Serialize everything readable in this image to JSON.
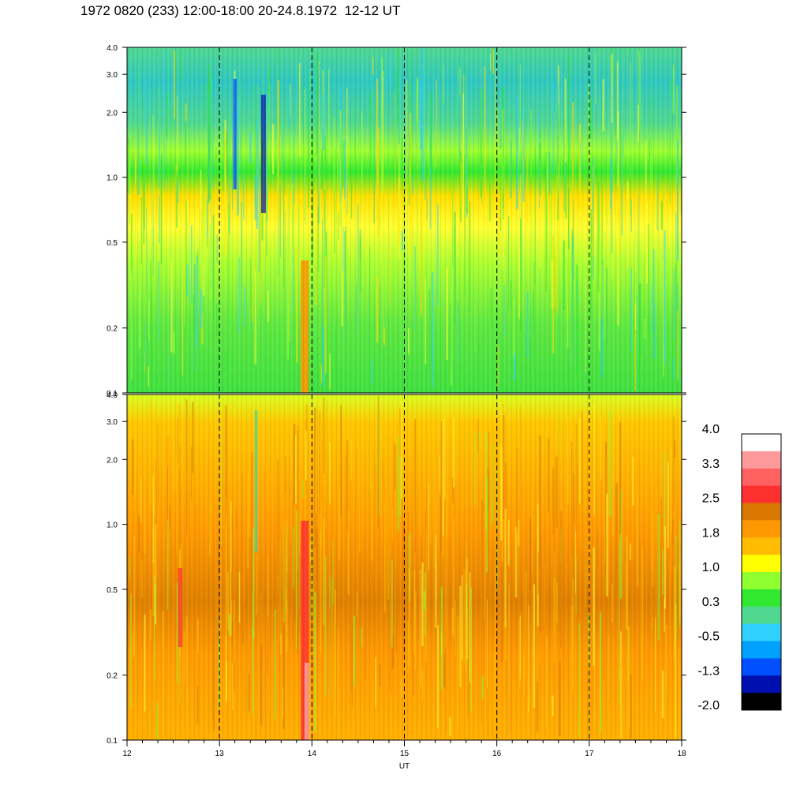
{
  "title": "1972 0820 (233) 12:00-18:00 20-24.8.1972  12-12 UT",
  "chart_data": {
    "type": "heatmap",
    "title": "1972 0820 (233) 12:00-18:00 20-24.8.1972  12-12 UT",
    "xlabel": "UT",
    "xlim": [
      12,
      18
    ],
    "x_ticks": [
      "12",
      "13",
      "14",
      "15",
      "16",
      "17",
      "18"
    ],
    "y_scale": "log",
    "ylim": [
      0.1,
      4.0
    ],
    "y_ticks": [
      {
        "value": 0.1,
        "label": "0.1"
      },
      {
        "value": 0.2,
        "label": "0.2"
      },
      {
        "value": 0.5,
        "label": "0.5"
      },
      {
        "value": 1.0,
        "label": "1.0"
      },
      {
        "value": 2.0,
        "label": "2.0"
      },
      {
        "value": 3.0,
        "label": "3.0"
      },
      {
        "value": 4.0,
        "label": "4.0"
      }
    ],
    "vertical_dashed_lines_at": [
      13,
      14,
      15,
      16,
      17
    ],
    "panels": [
      {
        "name": "upper",
        "typical_level_low_freq": 0.3,
        "typical_level_high_freq": -0.5
      },
      {
        "name": "lower",
        "typical_level_low_freq": 1.8,
        "typical_level_high_freq": 1.0
      }
    ],
    "colorbar": {
      "range": [
        -2.0,
        4.0
      ],
      "labels": [
        "4.0",
        "3.3",
        "2.5",
        "1.8",
        "1.0",
        "0.3",
        "-0.5",
        "-1.3",
        "-2.0"
      ],
      "colors": [
        "#ffffff",
        "#ff9a9a",
        "#ff6060",
        "#ff3030",
        "#d87800",
        "#ff9800",
        "#ffbc00",
        "#ffff00",
        "#90ff30",
        "#30e830",
        "#50d890",
        "#30d0ff",
        "#00a0ff",
        "#0050ff",
        "#0010b0",
        "#000000"
      ]
    }
  }
}
